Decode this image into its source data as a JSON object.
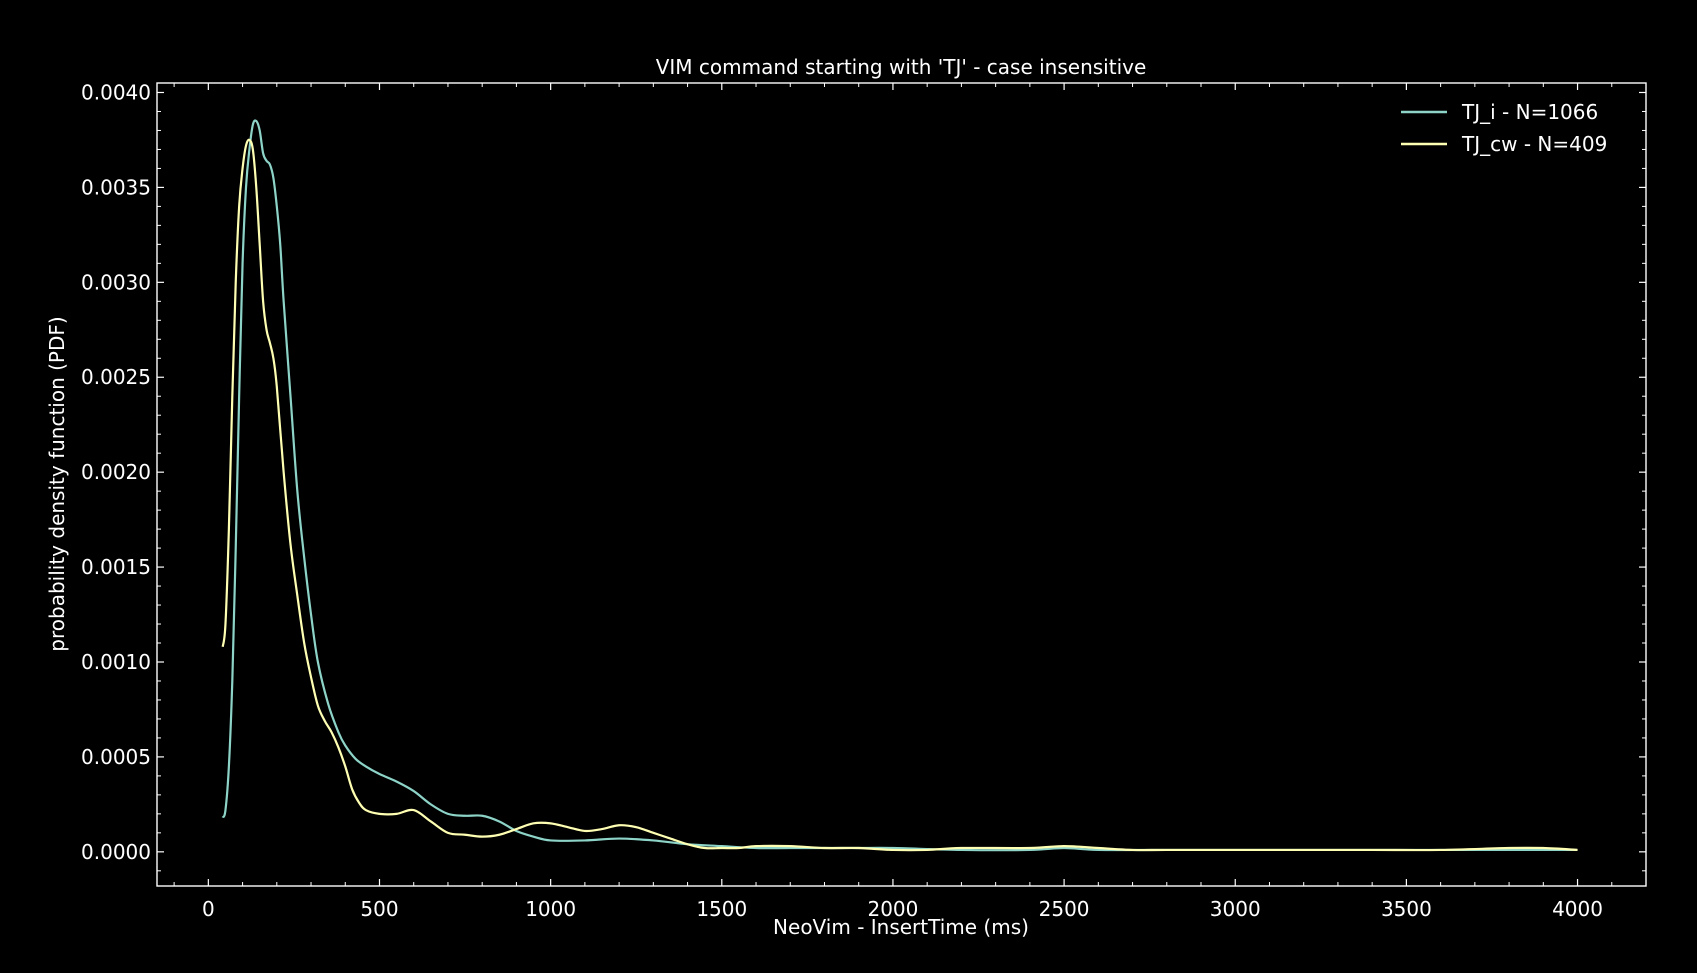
{
  "chart_data": {
    "type": "line",
    "title": "VIM command starting with 'TJ' - case insensitive",
    "xlabel": "NeoVim - InsertTime (ms)",
    "ylabel": "probability density function (PDF)",
    "xlim": [
      -150,
      4200
    ],
    "ylim": [
      -0.00018,
      0.00405
    ],
    "xticks": [
      0,
      500,
      1000,
      1500,
      2000,
      2500,
      3000,
      3500,
      4000
    ],
    "xtick_labels": [
      "0",
      "500",
      "1000",
      "1500",
      "2000",
      "2500",
      "3000",
      "3500",
      "4000"
    ],
    "yticks": [
      0,
      0.0005,
      0.001,
      0.0015,
      0.002,
      0.0025,
      0.003,
      0.0035,
      0.004
    ],
    "ytick_labels": [
      "0.0000",
      "0.0005",
      "0.0010",
      "0.0015",
      "0.0020",
      "0.0025",
      "0.0030",
      "0.0035",
      "0.0040"
    ],
    "grid": false,
    "legend_position": "top-right",
    "background": "#000000",
    "series": [
      {
        "name": "TJ_i - N=1066",
        "color": "#8dd3c7",
        "x": [
          42,
          50,
          60,
          70,
          80,
          90,
          100,
          110,
          120,
          130,
          140,
          150,
          160,
          170,
          180,
          190,
          200,
          210,
          220,
          240,
          260,
          280,
          300,
          320,
          350,
          380,
          400,
          430,
          460,
          500,
          550,
          600,
          650,
          700,
          750,
          800,
          850,
          900,
          950,
          1000,
          1100,
          1200,
          1300,
          1400,
          1500,
          1600,
          1700,
          1800,
          1900,
          2000,
          2200,
          2400,
          2500,
          2600,
          2800,
          3000,
          3200,
          3400,
          3600,
          3800,
          3900,
          4000
        ],
        "y": [
          0.00018,
          0.00022,
          0.00045,
          0.0009,
          0.0016,
          0.0024,
          0.0031,
          0.0035,
          0.0037,
          0.00383,
          0.00385,
          0.0038,
          0.00368,
          0.00364,
          0.00362,
          0.00355,
          0.0034,
          0.0032,
          0.0029,
          0.0024,
          0.0019,
          0.00155,
          0.00125,
          0.001,
          0.00078,
          0.00063,
          0.00056,
          0.00049,
          0.00045,
          0.00041,
          0.00037,
          0.00032,
          0.00025,
          0.0002,
          0.00019,
          0.00019,
          0.00016,
          0.00011,
          8e-05,
          6e-05,
          6e-05,
          7e-05,
          6e-05,
          4e-05,
          3e-05,
          2e-05,
          2e-05,
          2e-05,
          2e-05,
          2e-05,
          1e-05,
          1e-05,
          2e-05,
          1e-05,
          1e-05,
          1e-05,
          1e-05,
          1e-05,
          1e-05,
          1e-05,
          1e-05,
          1e-05
        ]
      },
      {
        "name": "TJ_cw - N=409",
        "color": "#ffffb3",
        "x": [
          42,
          50,
          60,
          70,
          80,
          90,
          100,
          110,
          120,
          130,
          140,
          150,
          160,
          170,
          180,
          190,
          200,
          220,
          240,
          260,
          280,
          300,
          320,
          340,
          360,
          380,
          400,
          420,
          440,
          460,
          500,
          550,
          600,
          650,
          700,
          750,
          800,
          850,
          900,
          950,
          1000,
          1050,
          1100,
          1150,
          1200,
          1250,
          1300,
          1350,
          1400,
          1450,
          1500,
          1550,
          1600,
          1700,
          1800,
          1900,
          2000,
          2100,
          2200,
          2400,
          2500,
          2600,
          2700,
          2800,
          3000,
          3200,
          3400,
          3600,
          3800,
          3900,
          4000
        ],
        "y": [
          0.00108,
          0.0012,
          0.0017,
          0.0024,
          0.003,
          0.0034,
          0.0036,
          0.00372,
          0.00375,
          0.0037,
          0.0035,
          0.0032,
          0.0029,
          0.00275,
          0.00268,
          0.0026,
          0.00245,
          0.002,
          0.00162,
          0.00135,
          0.0011,
          0.00092,
          0.00077,
          0.00069,
          0.00063,
          0.00055,
          0.00045,
          0.00033,
          0.00026,
          0.00022,
          0.0002,
          0.0002,
          0.00022,
          0.00016,
          0.0001,
          9e-05,
          8e-05,
          9e-05,
          0.00012,
          0.00015,
          0.00015,
          0.00013,
          0.00011,
          0.00012,
          0.00014,
          0.00013,
          0.0001,
          7e-05,
          4e-05,
          2e-05,
          2e-05,
          2e-05,
          3e-05,
          3e-05,
          2e-05,
          2e-05,
          1e-05,
          1e-05,
          2e-05,
          2e-05,
          3e-05,
          2e-05,
          1e-05,
          1e-05,
          1e-05,
          1e-05,
          1e-05,
          1e-05,
          2e-05,
          2e-05,
          1e-05
        ]
      }
    ]
  }
}
